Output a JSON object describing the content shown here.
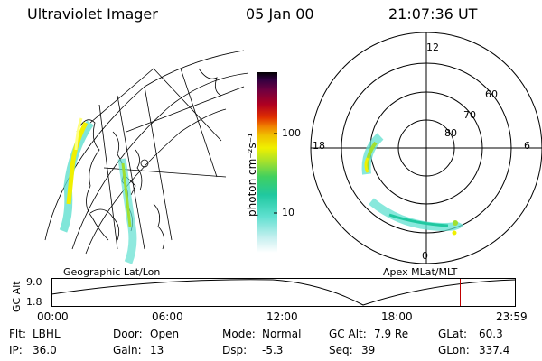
{
  "header": {
    "instrument": "Ultraviolet Imager",
    "date": "05 Jan 00",
    "time": "21:07:36 UT"
  },
  "geo_panel": {
    "label": "Geographic Lat/Lon"
  },
  "polar_panel": {
    "label": "Apex MLat/MLT",
    "mlt_labels": {
      "top": "12",
      "left": "18",
      "right": "6",
      "bottom": "0"
    },
    "lat_labels": [
      "60",
      "70",
      "80"
    ]
  },
  "colorbar": {
    "unit_label": "photon cm⁻²s⁻¹",
    "ticks": [
      "100",
      "10"
    ],
    "colors": [
      "#ffffff",
      "#c8f0f0",
      "#60e0d0",
      "#20c8a0",
      "#40d060",
      "#a0e030",
      "#f0f000",
      "#f0c000",
      "#f08000",
      "#e03000",
      "#b00020",
      "#700040",
      "#300040",
      "#000000"
    ]
  },
  "orbit_plot": {
    "ylabel": "GC Alt",
    "yticks": [
      "9.0",
      "1.8"
    ],
    "xticks": [
      "00:00",
      "06:00",
      "12:00",
      "18:00",
      "23:59"
    ],
    "marker_hour": 21.127
  },
  "info": {
    "row1": [
      {
        "key": "Flt:",
        "val": "LBHL"
      },
      {
        "key": "Door:",
        "val": "Open"
      },
      {
        "key": "Mode:",
        "val": "Normal"
      },
      {
        "key": "GC Alt:",
        "val": "7.9 Re"
      },
      {
        "key": "GLat:",
        "val": "60.3"
      }
    ],
    "row2": [
      {
        "key": "IP:",
        "val": "36.0"
      },
      {
        "key": "Gain:",
        "val": "13"
      },
      {
        "key": "Dsp:",
        "val": "-5.3"
      },
      {
        "key": "Seq:",
        "val": "39"
      },
      {
        "key": "GLon:",
        "val": "337.4"
      }
    ]
  }
}
